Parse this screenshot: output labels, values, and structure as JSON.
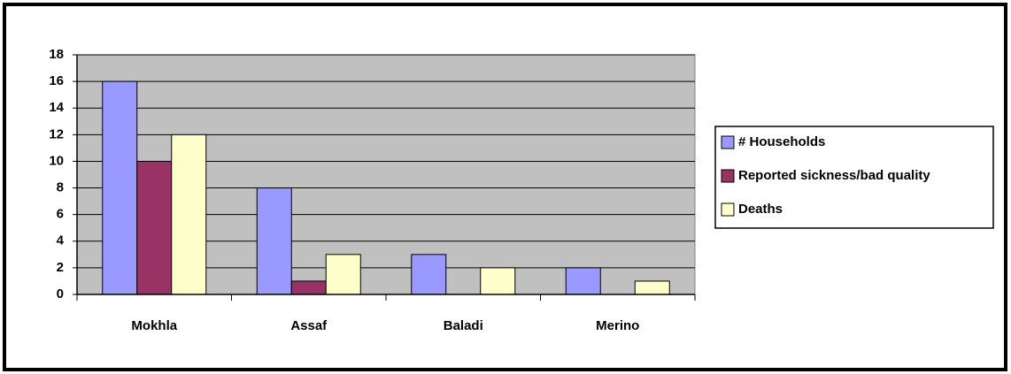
{
  "chart_data": {
    "type": "bar",
    "categories": [
      "Mokhla",
      "Assaf",
      "Baladi",
      "Merino"
    ],
    "series": [
      {
        "name": "# Households",
        "color": "#9999ff",
        "values": [
          16,
          8,
          3,
          2
        ]
      },
      {
        "name": "Reported sickness/bad quality",
        "color": "#993366",
        "values": [
          10,
          1,
          0,
          0
        ]
      },
      {
        "name": "Deaths",
        "color": "#ffffcc",
        "values": [
          12,
          3,
          2,
          1
        ]
      }
    ],
    "ylim": [
      0,
      18
    ],
    "yticks": [
      0,
      2,
      4,
      6,
      8,
      10,
      12,
      14,
      16,
      18
    ],
    "grid": true,
    "legend": "right",
    "plot_background": "#c0c0c0"
  }
}
